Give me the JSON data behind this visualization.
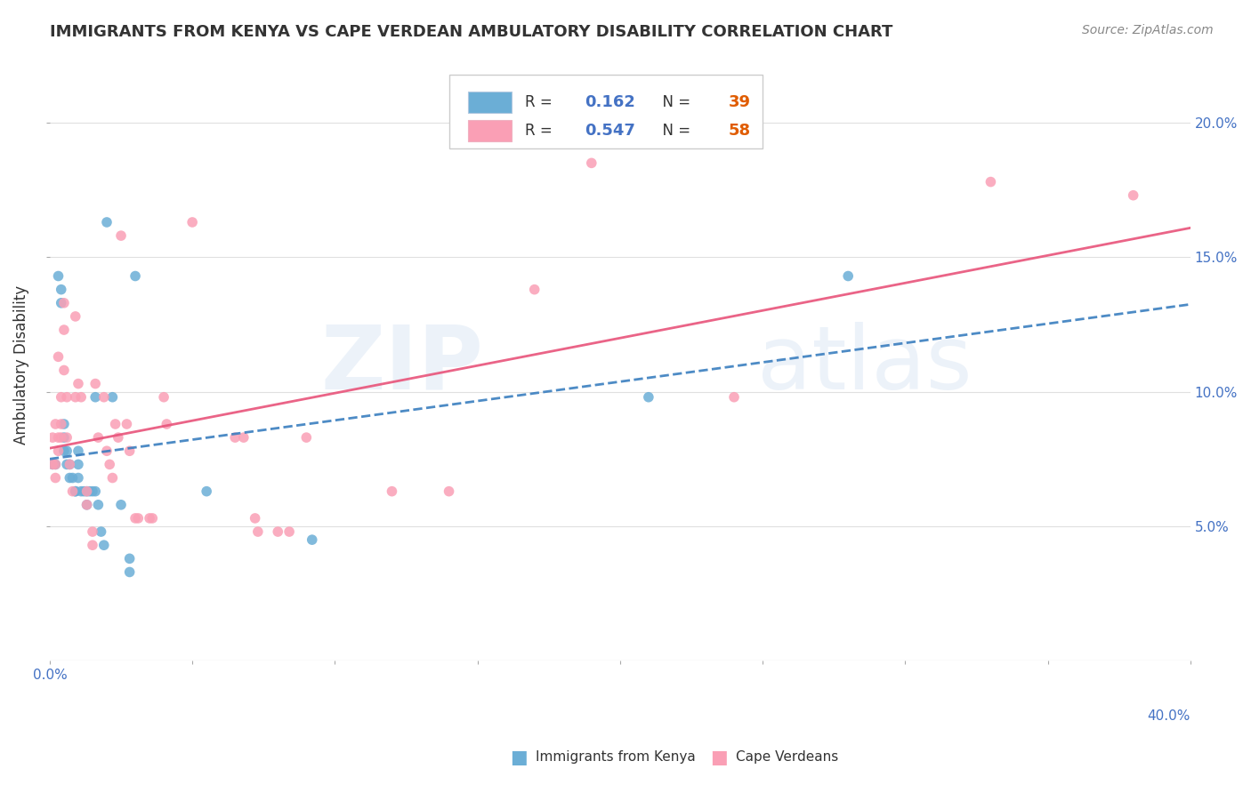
{
  "title": "IMMIGRANTS FROM KENYA VS CAPE VERDEAN AMBULATORY DISABILITY CORRELATION CHART",
  "source": "Source: ZipAtlas.com",
  "ylabel": "Ambulatory Disability",
  "legend_kenya": {
    "R": "0.162",
    "N": "39"
  },
  "legend_cape": {
    "R": "0.547",
    "N": "58"
  },
  "kenya_color": "#6baed6",
  "cape_color": "#fa9fb5",
  "kenya_line_color": "#3a7ebf",
  "cape_line_color": "#e8537a",
  "kenya_scatter": [
    [
      0.1,
      7.3
    ],
    [
      0.2,
      7.3
    ],
    [
      0.3,
      14.3
    ],
    [
      0.4,
      13.8
    ],
    [
      0.4,
      13.3
    ],
    [
      0.5,
      8.8
    ],
    [
      0.5,
      8.3
    ],
    [
      0.5,
      7.8
    ],
    [
      0.6,
      7.8
    ],
    [
      0.6,
      7.3
    ],
    [
      0.7,
      7.3
    ],
    [
      0.7,
      6.8
    ],
    [
      0.8,
      6.8
    ],
    [
      0.9,
      6.3
    ],
    [
      0.9,
      6.3
    ],
    [
      1.0,
      7.8
    ],
    [
      1.0,
      7.3
    ],
    [
      1.0,
      6.8
    ],
    [
      1.1,
      6.3
    ],
    [
      1.2,
      6.3
    ],
    [
      1.3,
      6.3
    ],
    [
      1.3,
      5.8
    ],
    [
      1.4,
      6.3
    ],
    [
      1.5,
      6.3
    ],
    [
      1.6,
      9.8
    ],
    [
      1.6,
      6.3
    ],
    [
      1.7,
      5.8
    ],
    [
      1.8,
      4.8
    ],
    [
      1.9,
      4.3
    ],
    [
      2.0,
      16.3
    ],
    [
      2.2,
      9.8
    ],
    [
      2.5,
      5.8
    ],
    [
      2.8,
      3.8
    ],
    [
      2.8,
      3.3
    ],
    [
      3.0,
      14.3
    ],
    [
      5.5,
      6.3
    ],
    [
      9.2,
      4.5
    ],
    [
      21.0,
      9.8
    ],
    [
      28.0,
      14.3
    ]
  ],
  "cape_scatter": [
    [
      0.1,
      7.3
    ],
    [
      0.1,
      8.3
    ],
    [
      0.2,
      8.8
    ],
    [
      0.2,
      7.3
    ],
    [
      0.2,
      6.8
    ],
    [
      0.3,
      11.3
    ],
    [
      0.3,
      8.3
    ],
    [
      0.3,
      7.8
    ],
    [
      0.4,
      9.8
    ],
    [
      0.4,
      8.8
    ],
    [
      0.4,
      8.3
    ],
    [
      0.5,
      13.3
    ],
    [
      0.5,
      12.3
    ],
    [
      0.5,
      10.8
    ],
    [
      0.6,
      9.8
    ],
    [
      0.6,
      8.3
    ],
    [
      0.7,
      7.3
    ],
    [
      0.8,
      6.3
    ],
    [
      0.9,
      12.8
    ],
    [
      0.9,
      9.8
    ],
    [
      1.0,
      10.3
    ],
    [
      1.1,
      9.8
    ],
    [
      1.3,
      6.3
    ],
    [
      1.3,
      5.8
    ],
    [
      1.5,
      4.8
    ],
    [
      1.5,
      4.3
    ],
    [
      1.6,
      10.3
    ],
    [
      1.7,
      8.3
    ],
    [
      1.9,
      9.8
    ],
    [
      2.0,
      7.8
    ],
    [
      2.1,
      7.3
    ],
    [
      2.2,
      6.8
    ],
    [
      2.3,
      8.8
    ],
    [
      2.4,
      8.3
    ],
    [
      2.5,
      15.8
    ],
    [
      2.7,
      8.8
    ],
    [
      2.8,
      7.8
    ],
    [
      3.0,
      5.3
    ],
    [
      3.1,
      5.3
    ],
    [
      3.5,
      5.3
    ],
    [
      3.6,
      5.3
    ],
    [
      4.0,
      9.8
    ],
    [
      4.1,
      8.8
    ],
    [
      5.0,
      16.3
    ],
    [
      6.5,
      8.3
    ],
    [
      6.8,
      8.3
    ],
    [
      7.2,
      5.3
    ],
    [
      7.3,
      4.8
    ],
    [
      8.0,
      4.8
    ],
    [
      8.4,
      4.8
    ],
    [
      9.0,
      8.3
    ],
    [
      12.0,
      6.3
    ],
    [
      14.0,
      6.3
    ],
    [
      17.0,
      13.8
    ],
    [
      19.0,
      18.5
    ],
    [
      24.0,
      9.8
    ],
    [
      33.0,
      17.8
    ],
    [
      38.0,
      17.3
    ]
  ],
  "xlim": [
    0,
    40.0
  ],
  "ylim": [
    0.0,
    22.0
  ],
  "xticks": [
    0,
    5,
    10,
    15,
    20,
    25,
    30,
    35,
    40
  ],
  "yticks_right": [
    5.0,
    10.0,
    15.0,
    20.0
  ],
  "watermark": "ZIPatlas",
  "background_color": "#ffffff",
  "grid_color": "#e0e0e0",
  "text_color": "#333333",
  "axis_color": "#4472c4",
  "N_color": "#e05c00",
  "title_fontsize": 13,
  "source_fontsize": 10
}
